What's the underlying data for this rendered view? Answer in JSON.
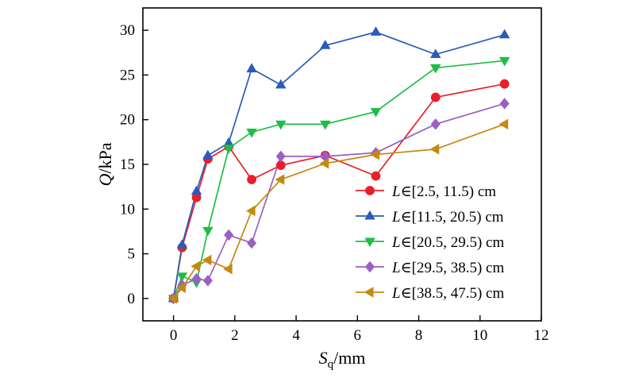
{
  "chart_data": {
    "type": "line",
    "xlabel": {
      "symbol": "S",
      "subscript": "q",
      "unit": "/mm"
    },
    "ylabel": {
      "symbol": "Q",
      "unit": "/kPa"
    },
    "xlim": [
      -1,
      12
    ],
    "ylim": [
      -2.5,
      32.5
    ],
    "xticks": [
      0,
      2,
      4,
      6,
      8,
      10,
      12
    ],
    "yticks": [
      0,
      5,
      10,
      15,
      20,
      25,
      30
    ],
    "grid": false,
    "legend_position": "right-middle",
    "series": [
      {
        "name_var": "L",
        "name_rest": "∈[2.5, 11.5) cm",
        "color": "#e8202a",
        "marker": "circle",
        "x": [
          0,
          0.28,
          0.75,
          1.12,
          1.8,
          2.55,
          3.5,
          4.95,
          6.6,
          8.55,
          10.8
        ],
        "y": [
          0,
          5.7,
          11.3,
          15.6,
          17.0,
          13.3,
          14.9,
          16.0,
          13.7,
          22.5,
          24.0
        ]
      },
      {
        "name_var": "L",
        "name_rest": "∈[11.5, 20.5) cm",
        "color": "#2a5cb8",
        "marker": "triangle-up",
        "x": [
          0,
          0.28,
          0.75,
          1.12,
          1.8,
          2.55,
          3.5,
          4.95,
          6.6,
          8.55,
          10.8
        ],
        "y": [
          0,
          6.0,
          12.0,
          16.0,
          17.4,
          25.7,
          23.9,
          28.3,
          29.8,
          27.3,
          29.5
        ]
      },
      {
        "name_var": "L",
        "name_rest": "∈[20.5, 29.5) cm",
        "color": "#1fbd46",
        "marker": "triangle-down",
        "x": [
          0,
          0.28,
          0.75,
          1.12,
          1.8,
          2.55,
          3.5,
          4.95,
          6.6,
          8.55,
          10.8
        ],
        "y": [
          0,
          2.5,
          1.8,
          7.6,
          16.8,
          18.6,
          19.5,
          19.5,
          20.9,
          25.8,
          26.6
        ]
      },
      {
        "name_var": "L",
        "name_rest": "∈[29.5, 38.5) cm",
        "color": "#9a5fc4",
        "marker": "diamond",
        "x": [
          0,
          0.28,
          0.75,
          1.12,
          1.8,
          2.55,
          3.5,
          4.95,
          6.6,
          8.55,
          10.8
        ],
        "y": [
          0,
          1.5,
          2.2,
          2.0,
          7.1,
          6.2,
          15.9,
          15.9,
          16.3,
          19.5,
          21.8
        ]
      },
      {
        "name_var": "L",
        "name_rest": "∈[38.5, 47.5) cm",
        "color": "#c48a10",
        "marker": "triangle-left",
        "x": [
          0,
          0.28,
          0.75,
          1.12,
          1.8,
          2.55,
          3.5,
          4.95,
          6.6,
          8.55,
          10.8
        ],
        "y": [
          0,
          1.2,
          3.6,
          4.3,
          3.3,
          9.8,
          13.3,
          15.1,
          16.1,
          16.7,
          19.5
        ]
      }
    ]
  }
}
